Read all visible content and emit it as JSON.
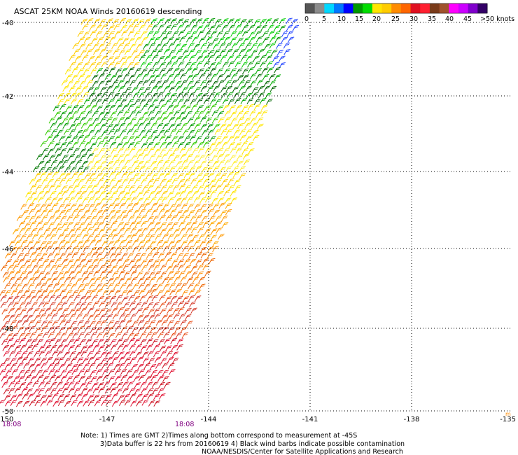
{
  "title": "ASCAT 25KM NOAA Winds 20160619 descending",
  "legend": {
    "colors": [
      "#555555",
      "#8c8c8c",
      "#00d8ff",
      "#0077ff",
      "#0000ff",
      "#009900",
      "#00dd00",
      "#ffe600",
      "#ffcc00",
      "#ff8c00",
      "#ff6600",
      "#e01020",
      "#ff2030",
      "#7a3b1a",
      "#a0522d",
      "#ff00ff",
      "#cc00ff",
      "#8000cc",
      "#330066"
    ],
    "labels": [
      "0",
      "5",
      "10",
      "15",
      "20",
      "25",
      "30",
      "35",
      "40",
      "45",
      ">50 knots"
    ]
  },
  "axes": {
    "lat_labels": [
      "-40",
      "-42",
      "-44",
      "-46",
      "-48",
      "-50"
    ],
    "lon_labels": [
      "-150",
      "-147",
      "-144",
      "-141",
      "-138",
      "-135"
    ]
  },
  "times": [
    "18:08",
    "18:08"
  ],
  "edge_marker": "m",
  "notes": [
    "Note: 1) Times are GMT 2)Times along bottom correspond to measurement at -45S",
    "3)Data buffer is 22 hrs from 20160619 4) Black wind barbs indicate possible contamination",
    "NOAA/NESDIS/Center for Satellite Applications and Research"
  ]
}
